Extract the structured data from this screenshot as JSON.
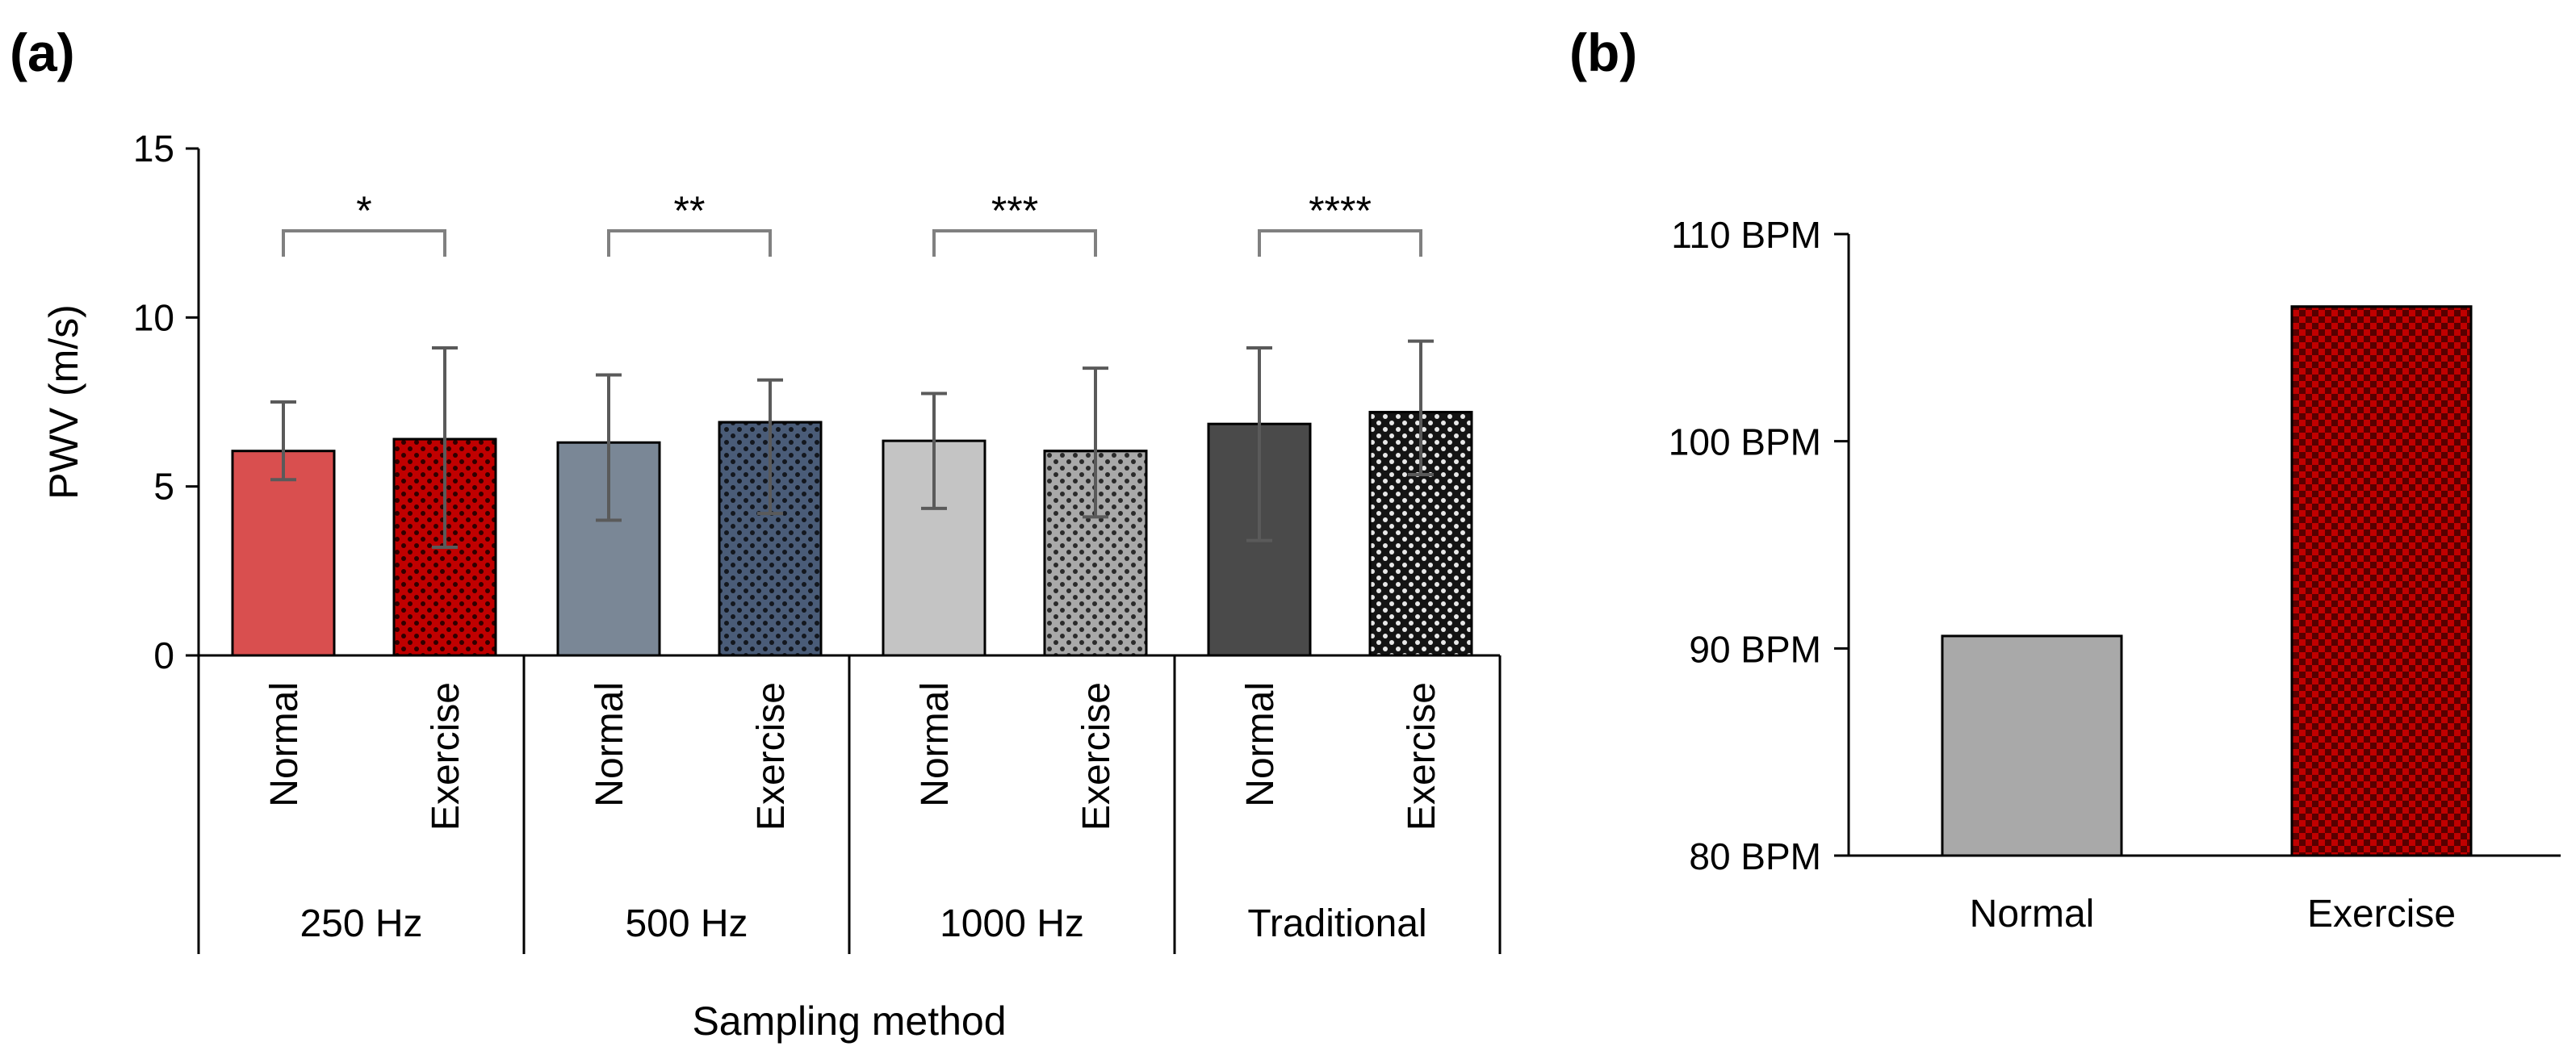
{
  "panels": {
    "a": {
      "label": "(a)"
    },
    "b": {
      "label": "(b)"
    }
  },
  "chart_data": [
    {
      "type": "bar",
      "panel": "(a)",
      "title": "",
      "xlabel": "Sampling method",
      "ylabel": "PWV (m/s)",
      "ylim": [
        0,
        15
      ],
      "yticks": [
        0,
        5,
        10,
        15
      ],
      "groups": [
        "250 Hz",
        "500 Hz",
        "1000 Hz",
        "Traditional"
      ],
      "conditions": [
        "Normal",
        "Exercise"
      ],
      "bars": [
        {
          "group": "250 Hz",
          "condition": "Normal",
          "value": 6.05,
          "err_low": 5.2,
          "err_high": 7.5,
          "color": "#d94f4f",
          "pattern": "solid"
        },
        {
          "group": "250 Hz",
          "condition": "Exercise",
          "value": 6.4,
          "err_low": 3.2,
          "err_high": 9.1,
          "color": "#c00000",
          "pattern": "dots"
        },
        {
          "group": "500 Hz",
          "condition": "Normal",
          "value": 6.3,
          "err_low": 4.0,
          "err_high": 8.3,
          "color": "#7a8796",
          "pattern": "solid"
        },
        {
          "group": "500 Hz",
          "condition": "Exercise",
          "value": 6.9,
          "err_low": 4.2,
          "err_high": 8.15,
          "color": "#4a5c78",
          "pattern": "dots"
        },
        {
          "group": "1000 Hz",
          "condition": "Normal",
          "value": 6.35,
          "err_low": 4.35,
          "err_high": 7.75,
          "color": "#c4c4c4",
          "pattern": "solid"
        },
        {
          "group": "1000 Hz",
          "condition": "Exercise",
          "value": 6.05,
          "err_low": 4.1,
          "err_high": 8.5,
          "color": "#a9a9a9",
          "pattern": "dots"
        },
        {
          "group": "Traditional",
          "condition": "Normal",
          "value": 6.85,
          "err_low": 3.4,
          "err_high": 9.1,
          "color": "#4a4a4a",
          "pattern": "solid"
        },
        {
          "group": "Traditional",
          "condition": "Exercise",
          "value": 7.2,
          "err_low": 5.35,
          "err_high": 9.3,
          "color": "#141414",
          "pattern": "dots"
        }
      ],
      "significance": [
        {
          "group": "250 Hz",
          "label": "*"
        },
        {
          "group": "500 Hz",
          "label": "**"
        },
        {
          "group": "1000 Hz",
          "label": "***"
        },
        {
          "group": "Traditional",
          "label": "****"
        }
      ],
      "grid": false
    },
    {
      "type": "bar",
      "panel": "(b)",
      "title": "",
      "categories": [
        "Normal",
        "Exercise"
      ],
      "values": [
        90.6,
        106.5
      ],
      "ylim": [
        80,
        110
      ],
      "yticks": [
        "80 BPM",
        "90 BPM",
        "100 BPM",
        "110 BPM"
      ],
      "ytick_values": [
        80,
        90,
        100,
        110
      ],
      "colors": [
        "#a9a9a9",
        "#c00000"
      ],
      "patterns": [
        "solid",
        "checker"
      ],
      "grid": false
    }
  ],
  "colors": {
    "axis": "#000000",
    "error_bar": "#5a5a5a",
    "sig_bracket": "#808080"
  }
}
